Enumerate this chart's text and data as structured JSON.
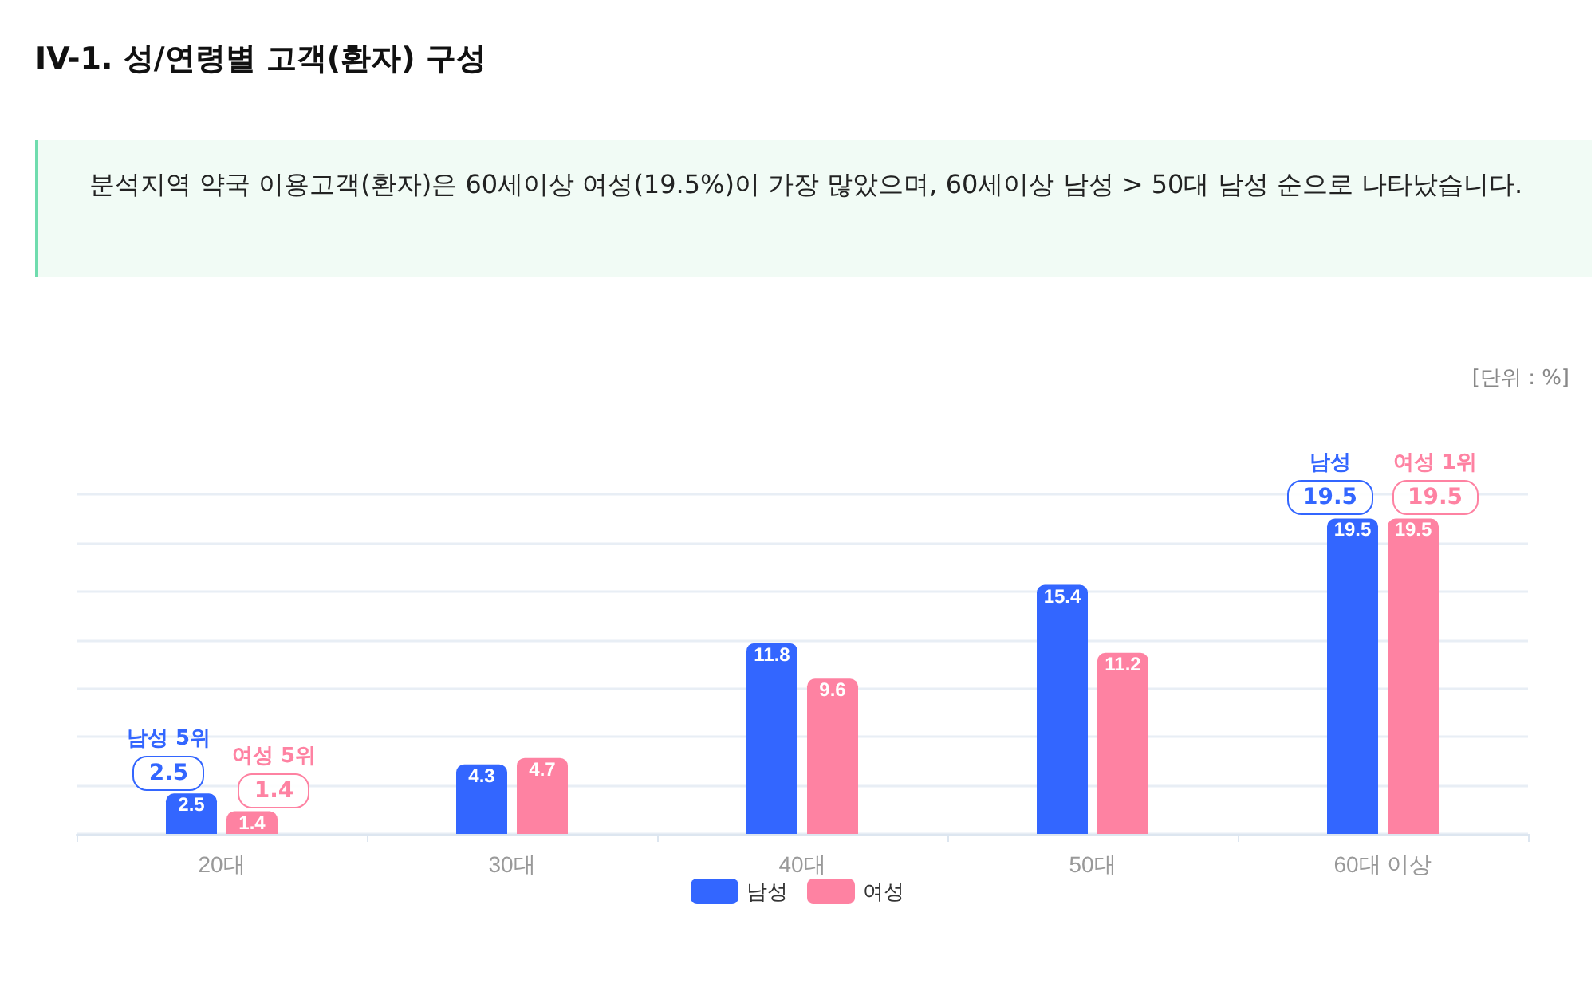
{
  "chart_data": {
    "type": "bar",
    "title": "IV-1. 성/연령별 고객(환자) 구성",
    "subtitle": "분석지역 약국 이용고객(환자)은 60세이상 여성(19.5%)이 가장 많았으며, 60세이상 남성 > 50대 남성 순으로 나타났습니다.",
    "categories": [
      "20대",
      "30대",
      "40대",
      "50대",
      "60대 이상"
    ],
    "series": [
      {
        "name": "남성",
        "color": "#3366ff",
        "values": [
          2.5,
          4.3,
          11.8,
          15.4,
          19.5
        ]
      },
      {
        "name": "여성",
        "color": "#fe82a2",
        "values": [
          1.4,
          4.7,
          9.6,
          11.2,
          19.5
        ]
      }
    ],
    "data_labels": true,
    "ylim": [
      0,
      21
    ],
    "yticks": [
      {
        "value": 0,
        "label": null
      },
      {
        "value": 3,
        "label": null
      },
      {
        "value": 6,
        "label": null
      },
      {
        "value": 9,
        "label": null
      },
      {
        "value": 12,
        "label": null
      },
      {
        "value": 15,
        "label": null
      },
      {
        "value": 18,
        "label": null
      },
      {
        "value": 21,
        "label": null
      }
    ],
    "tick_labels": "x",
    "grid": "y",
    "legend": "bottom",
    "annotations": [
      "[단위 : %]",
      {
        "text": "남성 5위\n2.5",
        "x": "20대",
        "y": 2.5
      },
      {
        "text": "여성 5위\n1.4",
        "x": "20대",
        "y": 1.4
      },
      {
        "text": "남성\n19.5",
        "x": "60대 이상",
        "y": 19.5
      },
      {
        "text": "여성 1위\n19.5",
        "x": "60대 이상",
        "y": 19.5
      }
    ]
  }
}
